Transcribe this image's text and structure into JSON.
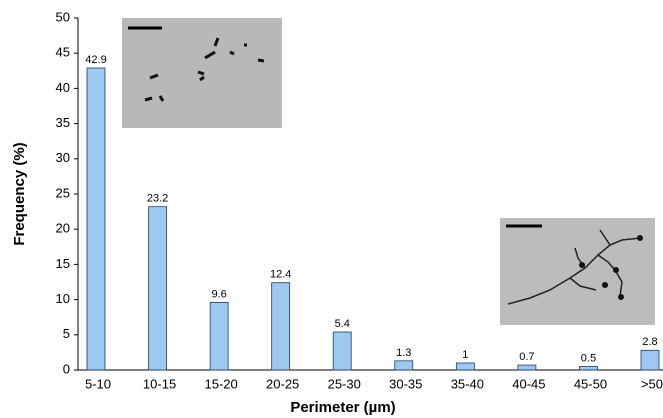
{
  "chart_data": {
    "type": "bar",
    "x_label": "Perimeter (µm)",
    "y_label": "Frequency (%)",
    "categories": [
      "5-10",
      "10-15",
      "15-20",
      "20-25",
      "25-30",
      "30-35",
      "35-40",
      "40-45",
      "45-50",
      ">50"
    ],
    "values": [
      42.9,
      23.2,
      9.6,
      12.4,
      5.4,
      1.3,
      1,
      0.7,
      0.5,
      2.8
    ],
    "color": "#9cc8f2",
    "ylim": [
      0,
      50
    ],
    "yticks": [
      0,
      5,
      10,
      15,
      20,
      25,
      30,
      35,
      40,
      45,
      50
    ]
  }
}
